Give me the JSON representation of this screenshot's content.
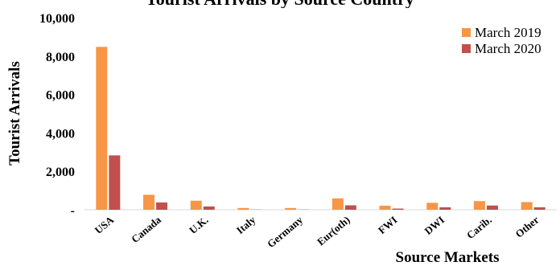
{
  "chart_data": {
    "type": "bar",
    "title": "Tourist Arrivals by Source Country",
    "xlabel": "Source Markets",
    "ylabel": "Tourist Arrivals",
    "categories": [
      "USA",
      "Canada",
      "U.K.",
      "Italy",
      "Germany",
      "Eur(oth)",
      "FWI",
      "DWI",
      "Carib.",
      "Other"
    ],
    "series": [
      {
        "name": "March 2019",
        "color": "#F79646",
        "values": [
          8480,
          780,
          470,
          90,
          90,
          590,
          210,
          360,
          450,
          400
        ]
      },
      {
        "name": "March 2020",
        "color": "#C0504D",
        "values": [
          2830,
          380,
          170,
          10,
          10,
          230,
          60,
          130,
          220,
          130
        ]
      }
    ],
    "ylim": [
      0,
      10000
    ],
    "yticks": [
      {
        "value": 0,
        "label": "-"
      },
      {
        "value": 2000,
        "label": "2,000"
      },
      {
        "value": 4000,
        "label": "4,000"
      },
      {
        "value": 6000,
        "label": "6,000"
      },
      {
        "value": 8000,
        "label": "8,000"
      },
      {
        "value": 10000,
        "label": "10,000"
      }
    ],
    "grid": false,
    "legend": "top-right"
  }
}
